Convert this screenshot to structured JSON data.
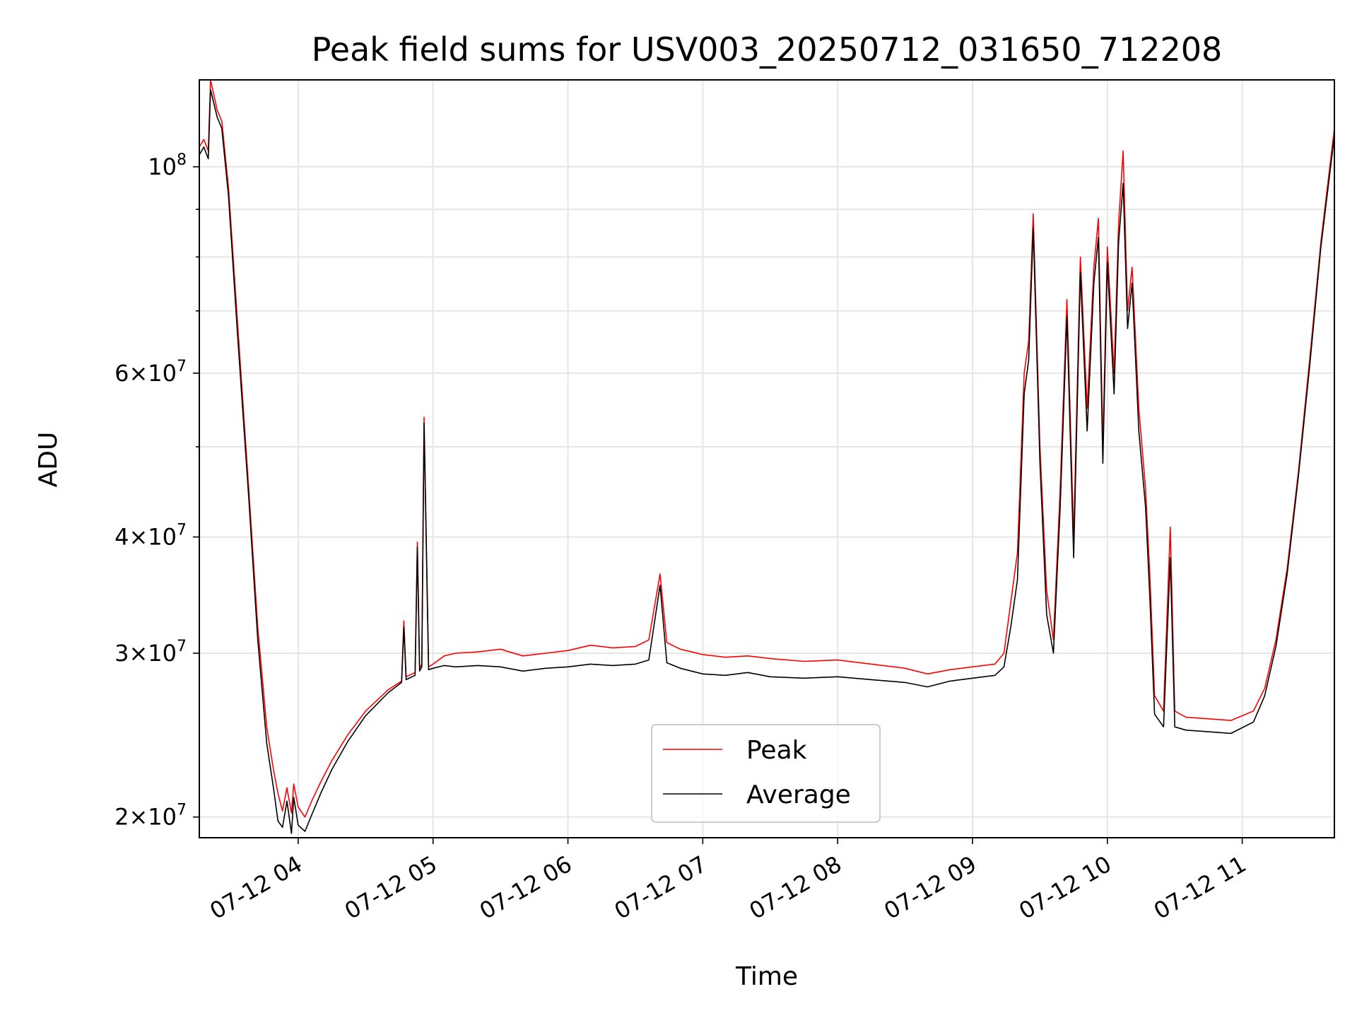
{
  "chart_data": {
    "type": "line",
    "title": "Peak field sums for USV003_20250712_031650_712208",
    "xlabel": "Time",
    "ylabel": "ADU",
    "yscale": "log",
    "ylim": [
      19000000,
      124000000
    ],
    "xlim": [
      "2025-07-12 03:16",
      "2025-07-12 11:41"
    ],
    "grid": true,
    "legend": {
      "placement": "lower-center",
      "entries": [
        "Peak",
        "Average"
      ]
    },
    "x_ticks": [
      {
        "t": "2025-07-12 04:00",
        "label": "07-12 04"
      },
      {
        "t": "2025-07-12 05:00",
        "label": "07-12 05"
      },
      {
        "t": "2025-07-12 06:00",
        "label": "07-12 06"
      },
      {
        "t": "2025-07-12 07:00",
        "label": "07-12 07"
      },
      {
        "t": "2025-07-12 08:00",
        "label": "07-12 08"
      },
      {
        "t": "2025-07-12 09:00",
        "label": "07-12 09"
      },
      {
        "t": "2025-07-12 10:00",
        "label": "07-12 10"
      },
      {
        "t": "2025-07-12 11:00",
        "label": "07-12 11"
      }
    ],
    "y_ticks": [
      {
        "value": 20000000,
        "mantissa": "2",
        "base": "10",
        "exp": "7"
      },
      {
        "value": 30000000,
        "mantissa": "3",
        "base": "10",
        "exp": "7"
      },
      {
        "value": 40000000,
        "mantissa": "4",
        "base": "10",
        "exp": "7"
      },
      {
        "value": 60000000,
        "mantissa": "6",
        "base": "10",
        "exp": "7"
      },
      {
        "value": 100000000,
        "mantissa": "",
        "base": "10",
        "exp": "8"
      }
    ],
    "y_minor": [
      50000000,
      70000000,
      80000000,
      90000000
    ],
    "series": [
      {
        "name": "Peak",
        "color": "#ff0000",
        "points": [
          [
            "2025-07-12 03:16",
            105000000
          ],
          [
            "2025-07-12 03:18",
            107000000
          ],
          [
            "2025-07-12 03:20",
            104000000
          ],
          [
            "2025-07-12 03:21",
            124000000
          ],
          [
            "2025-07-12 03:24",
            115000000
          ],
          [
            "2025-07-12 03:26",
            112000000
          ],
          [
            "2025-07-12 03:29",
            95000000
          ],
          [
            "2025-07-12 03:33",
            68000000
          ],
          [
            "2025-07-12 03:38",
            45000000
          ],
          [
            "2025-07-12 03:42",
            32000000
          ],
          [
            "2025-07-12 03:46",
            25000000
          ],
          [
            "2025-07-12 03:49",
            22500000
          ],
          [
            "2025-07-12 03:51",
            21200000
          ],
          [
            "2025-07-12 03:53",
            20300000
          ],
          [
            "2025-07-12 03:55",
            21500000
          ],
          [
            "2025-07-12 03:57",
            20200000
          ],
          [
            "2025-07-12 03:58",
            21700000
          ],
          [
            "2025-07-12 04:00",
            20500000
          ],
          [
            "2025-07-12 04:03",
            20000000
          ],
          [
            "2025-07-12 04:06",
            20800000
          ],
          [
            "2025-07-12 04:10",
            21800000
          ],
          [
            "2025-07-12 04:15",
            23000000
          ],
          [
            "2025-07-12 04:22",
            24500000
          ],
          [
            "2025-07-12 04:30",
            26000000
          ],
          [
            "2025-07-12 04:40",
            27400000
          ],
          [
            "2025-07-12 04:46",
            28000000
          ],
          [
            "2025-07-12 04:47",
            32500000
          ],
          [
            "2025-07-12 04:48",
            28300000
          ],
          [
            "2025-07-12 04:52",
            28600000
          ],
          [
            "2025-07-12 04:53",
            39500000
          ],
          [
            "2025-07-12 04:54",
            28900000
          ],
          [
            "2025-07-12 04:55",
            29200000
          ],
          [
            "2025-07-12 04:56",
            53800000
          ],
          [
            "2025-07-12 04:58",
            29000000
          ],
          [
            "2025-07-12 05:00",
            29200000
          ],
          [
            "2025-07-12 05:05",
            29800000
          ],
          [
            "2025-07-12 05:10",
            30000000
          ],
          [
            "2025-07-12 05:20",
            30100000
          ],
          [
            "2025-07-12 05:30",
            30300000
          ],
          [
            "2025-07-12 05:40",
            29800000
          ],
          [
            "2025-07-12 05:50",
            30000000
          ],
          [
            "2025-07-12 06:00",
            30200000
          ],
          [
            "2025-07-12 06:10",
            30600000
          ],
          [
            "2025-07-12 06:20",
            30400000
          ],
          [
            "2025-07-12 06:30",
            30500000
          ],
          [
            "2025-07-12 06:36",
            31000000
          ],
          [
            "2025-07-12 06:41",
            36500000
          ],
          [
            "2025-07-12 06:44",
            30800000
          ],
          [
            "2025-07-12 06:50",
            30300000
          ],
          [
            "2025-07-12 07:00",
            29900000
          ],
          [
            "2025-07-12 07:10",
            29700000
          ],
          [
            "2025-07-12 07:20",
            29800000
          ],
          [
            "2025-07-12 07:30",
            29600000
          ],
          [
            "2025-07-12 07:45",
            29400000
          ],
          [
            "2025-07-12 08:00",
            29500000
          ],
          [
            "2025-07-12 08:15",
            29200000
          ],
          [
            "2025-07-12 08:30",
            28900000
          ],
          [
            "2025-07-12 08:40",
            28500000
          ],
          [
            "2025-07-12 08:50",
            28800000
          ],
          [
            "2025-07-12 09:00",
            29000000
          ],
          [
            "2025-07-12 09:10",
            29200000
          ],
          [
            "2025-07-12 09:14",
            30000000
          ],
          [
            "2025-07-12 09:17",
            34000000
          ],
          [
            "2025-07-12 09:20",
            38500000
          ],
          [
            "2025-07-12 09:23",
            60000000
          ],
          [
            "2025-07-12 09:25",
            65000000
          ],
          [
            "2025-07-12 09:27",
            89000000
          ],
          [
            "2025-07-12 09:30",
            50000000
          ],
          [
            "2025-07-12 09:33",
            35000000
          ],
          [
            "2025-07-12 09:36",
            31000000
          ],
          [
            "2025-07-12 09:39",
            45000000
          ],
          [
            "2025-07-12 09:42",
            72000000
          ],
          [
            "2025-07-12 09:45",
            40000000
          ],
          [
            "2025-07-12 09:48",
            80000000
          ],
          [
            "2025-07-12 09:51",
            55000000
          ],
          [
            "2025-07-12 09:54",
            78000000
          ],
          [
            "2025-07-12 09:56",
            88000000
          ],
          [
            "2025-07-12 09:58",
            50000000
          ],
          [
            "2025-07-12 10:00",
            82000000
          ],
          [
            "2025-07-12 10:03",
            60000000
          ],
          [
            "2025-07-12 10:05",
            87000000
          ],
          [
            "2025-07-12 10:07",
            104000000
          ],
          [
            "2025-07-12 10:09",
            70000000
          ],
          [
            "2025-07-12 10:11",
            78000000
          ],
          [
            "2025-07-12 10:14",
            55000000
          ],
          [
            "2025-07-12 10:17",
            45000000
          ],
          [
            "2025-07-12 10:19",
            36000000
          ],
          [
            "2025-07-12 10:21",
            27000000
          ],
          [
            "2025-07-12 10:25",
            26000000
          ],
          [
            "2025-07-12 10:28",
            41000000
          ],
          [
            "2025-07-12 10:30",
            26000000
          ],
          [
            "2025-07-12 10:35",
            25600000
          ],
          [
            "2025-07-12 10:45",
            25500000
          ],
          [
            "2025-07-12 10:55",
            25400000
          ],
          [
            "2025-07-12 11:05",
            26000000
          ],
          [
            "2025-07-12 11:10",
            27500000
          ],
          [
            "2025-07-12 11:15",
            31000000
          ],
          [
            "2025-07-12 11:20",
            37000000
          ],
          [
            "2025-07-12 11:25",
            47000000
          ],
          [
            "2025-07-12 11:30",
            62000000
          ],
          [
            "2025-07-12 11:35",
            83000000
          ],
          [
            "2025-07-12 11:41",
            110000000
          ]
        ]
      },
      {
        "name": "Average",
        "color": "#000000",
        "points": [
          [
            "2025-07-12 03:16",
            103000000
          ],
          [
            "2025-07-12 03:18",
            105000000
          ],
          [
            "2025-07-12 03:20",
            102000000
          ],
          [
            "2025-07-12 03:21",
            121000000
          ],
          [
            "2025-07-12 03:24",
            113000000
          ],
          [
            "2025-07-12 03:26",
            110000000
          ],
          [
            "2025-07-12 03:29",
            93000000
          ],
          [
            "2025-07-12 03:33",
            66000000
          ],
          [
            "2025-07-12 03:38",
            44000000
          ],
          [
            "2025-07-12 03:42",
            31000000
          ],
          [
            "2025-07-12 03:46",
            24000000
          ],
          [
            "2025-07-12 03:49",
            21500000
          ],
          [
            "2025-07-12 03:51",
            19800000
          ],
          [
            "2025-07-12 03:53",
            19500000
          ],
          [
            "2025-07-12 03:55",
            20800000
          ],
          [
            "2025-07-12 03:57",
            19200000
          ],
          [
            "2025-07-12 03:58",
            21000000
          ],
          [
            "2025-07-12 04:00",
            19600000
          ],
          [
            "2025-07-12 04:03",
            19300000
          ],
          [
            "2025-07-12 04:06",
            20100000
          ],
          [
            "2025-07-12 04:10",
            21200000
          ],
          [
            "2025-07-12 04:15",
            22500000
          ],
          [
            "2025-07-12 04:22",
            24100000
          ],
          [
            "2025-07-12 04:30",
            25700000
          ],
          [
            "2025-07-12 04:40",
            27200000
          ],
          [
            "2025-07-12 04:46",
            27900000
          ],
          [
            "2025-07-12 04:47",
            32000000
          ],
          [
            "2025-07-12 04:48",
            28100000
          ],
          [
            "2025-07-12 04:52",
            28400000
          ],
          [
            "2025-07-12 04:53",
            39000000
          ],
          [
            "2025-07-12 04:54",
            28700000
          ],
          [
            "2025-07-12 04:55",
            29000000
          ],
          [
            "2025-07-12 04:56",
            53000000
          ],
          [
            "2025-07-12 04:58",
            28800000
          ],
          [
            "2025-07-12 05:00",
            28900000
          ],
          [
            "2025-07-12 05:05",
            29100000
          ],
          [
            "2025-07-12 05:10",
            29000000
          ],
          [
            "2025-07-12 05:20",
            29100000
          ],
          [
            "2025-07-12 05:30",
            29000000
          ],
          [
            "2025-07-12 05:40",
            28700000
          ],
          [
            "2025-07-12 05:50",
            28900000
          ],
          [
            "2025-07-12 06:00",
            29000000
          ],
          [
            "2025-07-12 06:10",
            29200000
          ],
          [
            "2025-07-12 06:20",
            29100000
          ],
          [
            "2025-07-12 06:30",
            29200000
          ],
          [
            "2025-07-12 06:36",
            29500000
          ],
          [
            "2025-07-12 06:41",
            35500000
          ],
          [
            "2025-07-12 06:44",
            29300000
          ],
          [
            "2025-07-12 06:50",
            28900000
          ],
          [
            "2025-07-12 07:00",
            28500000
          ],
          [
            "2025-07-12 07:10",
            28400000
          ],
          [
            "2025-07-12 07:20",
            28600000
          ],
          [
            "2025-07-12 07:30",
            28300000
          ],
          [
            "2025-07-12 07:45",
            28200000
          ],
          [
            "2025-07-12 08:00",
            28300000
          ],
          [
            "2025-07-12 08:15",
            28100000
          ],
          [
            "2025-07-12 08:30",
            27900000
          ],
          [
            "2025-07-12 08:40",
            27600000
          ],
          [
            "2025-07-12 08:50",
            28000000
          ],
          [
            "2025-07-12 09:00",
            28200000
          ],
          [
            "2025-07-12 09:10",
            28400000
          ],
          [
            "2025-07-12 09:14",
            29000000
          ],
          [
            "2025-07-12 09:17",
            32000000
          ],
          [
            "2025-07-12 09:20",
            36000000
          ],
          [
            "2025-07-12 09:23",
            57000000
          ],
          [
            "2025-07-12 09:25",
            62000000
          ],
          [
            "2025-07-12 09:27",
            86000000
          ],
          [
            "2025-07-12 09:30",
            48000000
          ],
          [
            "2025-07-12 09:33",
            33000000
          ],
          [
            "2025-07-12 09:36",
            30000000
          ],
          [
            "2025-07-12 09:39",
            43000000
          ],
          [
            "2025-07-12 09:42",
            69000000
          ],
          [
            "2025-07-12 09:45",
            38000000
          ],
          [
            "2025-07-12 09:48",
            77000000
          ],
          [
            "2025-07-12 09:51",
            52000000
          ],
          [
            "2025-07-12 09:54",
            75000000
          ],
          [
            "2025-07-12 09:56",
            84000000
          ],
          [
            "2025-07-12 09:58",
            48000000
          ],
          [
            "2025-07-12 10:00",
            79000000
          ],
          [
            "2025-07-12 10:03",
            57000000
          ],
          [
            "2025-07-12 10:05",
            83000000
          ],
          [
            "2025-07-12 10:07",
            96000000
          ],
          [
            "2025-07-12 10:09",
            67000000
          ],
          [
            "2025-07-12 10:11",
            75000000
          ],
          [
            "2025-07-12 10:14",
            52000000
          ],
          [
            "2025-07-12 10:17",
            43000000
          ],
          [
            "2025-07-12 10:19",
            34000000
          ],
          [
            "2025-07-12 10:21",
            25800000
          ],
          [
            "2025-07-12 10:25",
            25000000
          ],
          [
            "2025-07-12 10:28",
            38000000
          ],
          [
            "2025-07-12 10:30",
            25000000
          ],
          [
            "2025-07-12 10:35",
            24800000
          ],
          [
            "2025-07-12 10:45",
            24700000
          ],
          [
            "2025-07-12 10:55",
            24600000
          ],
          [
            "2025-07-12 11:05",
            25300000
          ],
          [
            "2025-07-12 11:10",
            27000000
          ],
          [
            "2025-07-12 11:15",
            30500000
          ],
          [
            "2025-07-12 11:20",
            36500000
          ],
          [
            "2025-07-12 11:25",
            46500000
          ],
          [
            "2025-07-12 11:30",
            61000000
          ],
          [
            "2025-07-12 11:35",
            82000000
          ],
          [
            "2025-07-12 11:41",
            108000000
          ]
        ]
      }
    ]
  }
}
